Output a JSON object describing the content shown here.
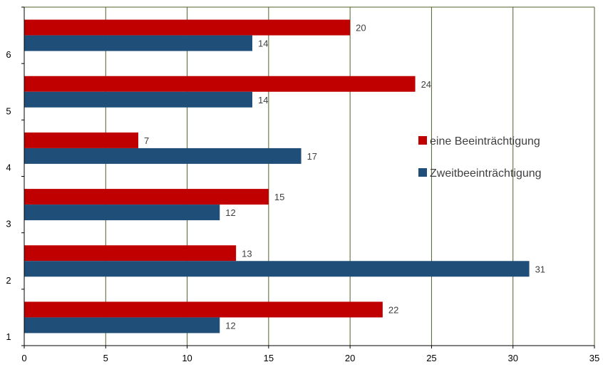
{
  "chart_data": {
    "type": "bar",
    "orientation": "horizontal",
    "categories": [
      "1",
      "2",
      "3",
      "4",
      "5",
      "6"
    ],
    "series": [
      {
        "name": "eine Beeinträchtigung",
        "color": "#C00000",
        "values": [
          22,
          13,
          15,
          7,
          24,
          20
        ]
      },
      {
        "name": "Zweitbeeinträchtigung",
        "color": "#1F4E79",
        "values": [
          12,
          31,
          12,
          17,
          14,
          14
        ]
      }
    ],
    "x_ticks": [
      "0",
      "5",
      "10",
      "15",
      "20",
      "25",
      "30",
      "35"
    ],
    "xlim": [
      0,
      35
    ],
    "grid": "vertical",
    "grid_color": "#4F6228",
    "legend_position": "right"
  }
}
